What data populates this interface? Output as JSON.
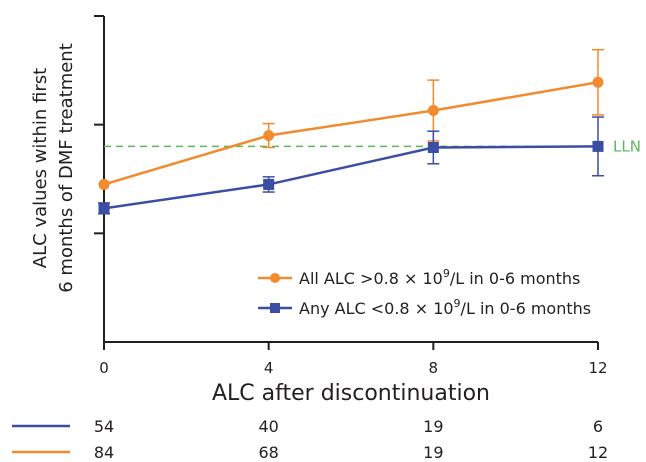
{
  "chart_data": {
    "type": "line",
    "xlabel": "ALC after discontinuation",
    "ylabel_lines": [
      "ALC values within first",
      "6 months of DMF treatment"
    ],
    "x_ticks": [
      0,
      4,
      8,
      12
    ],
    "xlim": [
      0,
      12
    ],
    "ylim": [
      0,
      3
    ],
    "y_ticks": [
      1,
      2,
      3
    ],
    "reference_line": {
      "label": "LLN",
      "y": 1.8,
      "color": "#5cb85c"
    },
    "legend": {
      "placement": "bottom-right"
    },
    "series": [
      {
        "name": "All ALC >0.8 × 10⁹/L in 0-6 months",
        "name_parts": [
          "All ALC >0.8 × 10",
          "9",
          "/L in 0-6 months"
        ],
        "color": "#f28a2e",
        "marker": "circle",
        "x": [
          0,
          4,
          8,
          12
        ],
        "y": [
          1.45,
          1.9,
          2.13,
          2.39
        ],
        "err": [
          0.0,
          0.11,
          0.28,
          0.3
        ],
        "n_at_risk": [
          "84",
          "68",
          "19",
          "12"
        ]
      },
      {
        "name": "Any ALC <0.8 × 10⁹/L in 0-6 months",
        "name_parts": [
          "Any ALC <0.8 × 10",
          "9",
          "/L in 0-6 months"
        ],
        "color": "#3b4ea3",
        "marker": "square",
        "x": [
          0,
          4,
          8,
          12
        ],
        "y": [
          1.23,
          1.45,
          1.79,
          1.8
        ],
        "err": [
          0.05,
          0.07,
          0.15,
          0.27
        ],
        "n_at_risk": [
          "54",
          "40",
          "19",
          "6"
        ]
      }
    ]
  }
}
